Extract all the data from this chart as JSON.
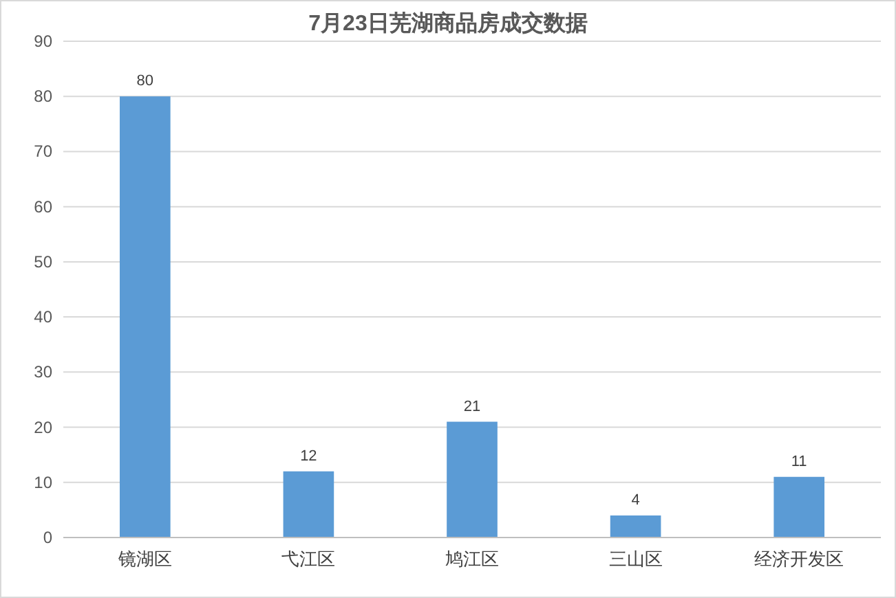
{
  "chart_data": {
    "type": "bar",
    "title": "7月23日芜湖商品房成交数据",
    "categories": [
      "镜湖区",
      "弋江区",
      "鸠江区",
      "三山区",
      "经济开发区"
    ],
    "values": [
      80,
      12,
      21,
      4,
      11
    ],
    "color": "#5b9bd5",
    "ylim": [
      0,
      90
    ],
    "yticks": [
      0,
      10,
      20,
      30,
      40,
      50,
      60,
      70,
      80,
      90
    ],
    "grid": "y",
    "data_labels": true
  }
}
